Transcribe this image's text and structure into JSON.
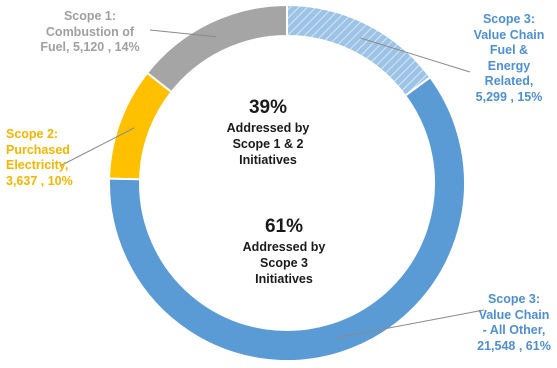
{
  "chart_data": {
    "type": "pie",
    "style": "donut",
    "slices": [
      {
        "key": "s3fuel",
        "lines": [
          "Scope 3:",
          "Value Chain",
          "Fuel &",
          "Energy",
          "Related,",
          "5,299 , 15%"
        ],
        "value": 5299,
        "percent": 15,
        "color": "#9dc3e6",
        "pattern": "hatch"
      },
      {
        "key": "s3other",
        "lines": [
          "Scope 3:",
          "Value Chain",
          "- All Other,",
          "21,548 , 61%"
        ],
        "value": 21548,
        "percent": 61,
        "color": "#5b9bd5"
      },
      {
        "key": "s2",
        "lines": [
          "Scope 2:",
          "Purchased",
          "Electricity,",
          "3,637 , 10%"
        ],
        "value": 3637,
        "percent": 10,
        "color": "#ffc000"
      },
      {
        "key": "s1",
        "lines": [
          "Scope 1:",
          "Combustion of",
          "Fuel,  5,120 , 14%"
        ],
        "value": 5120,
        "percent": 14,
        "color": "#a5a5a5"
      }
    ],
    "annotations": [
      {
        "key": "top",
        "percent_label": "39%",
        "lines": [
          "Addressed by",
          "Scope 1 & 2",
          "Initiatives"
        ]
      },
      {
        "key": "bottom",
        "percent_label": "61%",
        "lines": [
          "Addressed by",
          "Scope 3",
          "Initiatives"
        ]
      }
    ]
  }
}
